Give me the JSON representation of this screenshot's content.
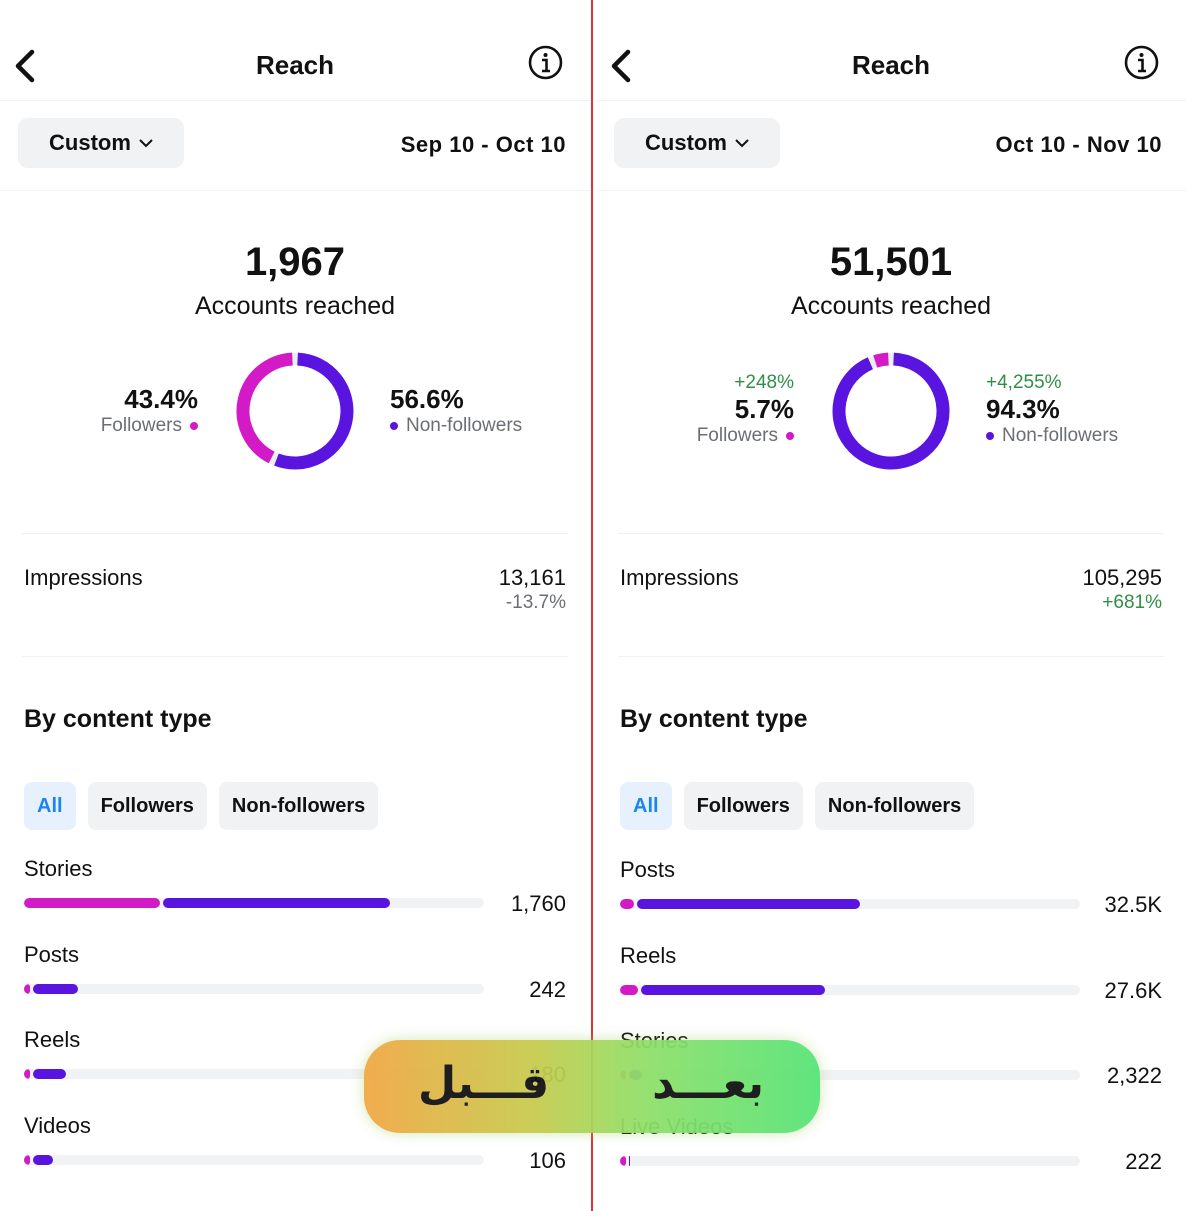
{
  "colors": {
    "followers": "#d21bc6",
    "non_followers": "#5a14e0",
    "positive_change": "#2f8f47",
    "active_chip": "#1c86ee"
  },
  "panels": [
    {
      "header": {
        "title": "Reach",
        "back_icon": "chevron-left-icon",
        "info_icon": "info-icon"
      },
      "custom_label": "Custom",
      "date_range": "Sep 10 - Oct 10",
      "accounts_reached": "1,967",
      "accounts_reached_label": "Accounts reached",
      "followers": {
        "change": "",
        "percent": "43.4%",
        "label": "Followers",
        "fraction": 0.434
      },
      "non_followers": {
        "change": "",
        "percent": "56.6%",
        "label": "Non-followers",
        "fraction": 0.566
      },
      "impressions": {
        "label": "Impressions",
        "value": "13,161",
        "change": "-13.7%"
      },
      "content_section_title": "By content type",
      "filters": [
        "All",
        "Followers",
        "Non-followers"
      ],
      "rows": [
        {
          "label": "Stories",
          "value": "1,760",
          "followers_value": 660,
          "non_followers_value": 1100
        },
        {
          "label": "Posts",
          "value": "242",
          "followers_value": 24,
          "non_followers_value": 218
        },
        {
          "label": "Reels",
          "value": "180",
          "followers_value": 20,
          "non_followers_value": 160
        },
        {
          "label": "Videos",
          "value": "106",
          "followers_value": 8,
          "non_followers_value": 98
        }
      ],
      "scale_max": 2230
    },
    {
      "header": {
        "title": "Reach",
        "back_icon": "chevron-left-icon",
        "info_icon": "info-icon"
      },
      "custom_label": "Custom",
      "date_range": "Oct 10 - Nov 10",
      "accounts_reached": "51,501",
      "accounts_reached_label": "Accounts reached",
      "followers": {
        "change": "+248%",
        "percent": "5.7%",
        "label": "Followers",
        "fraction": 0.057
      },
      "non_followers": {
        "change": "+4,255%",
        "percent": "94.3%",
        "label": "Non-followers",
        "fraction": 0.943
      },
      "impressions": {
        "label": "Impressions",
        "value": "105,295",
        "change": "+681%"
      },
      "content_section_title": "By content type",
      "filters": [
        "All",
        "Followers",
        "Non-followers"
      ],
      "rows": [
        {
          "label": "Posts",
          "value": "32.5K",
          "followers_value": 1900,
          "non_followers_value": 30600
        },
        {
          "label": "Reels",
          "value": "27.6K",
          "followers_value": 2400,
          "non_followers_value": 25200
        },
        {
          "label": "Stories",
          "value": "2,322",
          "followers_value": 600,
          "non_followers_value": 1722
        },
        {
          "label": "Live Videos",
          "value": "222",
          "followers_value": 30,
          "non_followers_value": 192
        }
      ],
      "scale_max": 63000
    }
  ],
  "overlay": {
    "before": "قـــبل",
    "after": "بعـــد"
  }
}
